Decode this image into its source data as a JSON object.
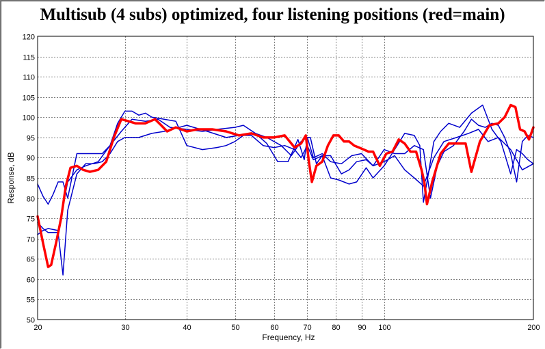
{
  "chart_data": {
    "type": "line",
    "title": "Multisub (4 subs) optimized, four listening positions (red=main)",
    "xlabel": "Frequency, Hz",
    "ylabel": "Response, dB",
    "xscale": "log",
    "xlim": [
      20,
      200
    ],
    "ylim": [
      50,
      120
    ],
    "grid": true,
    "x_ticks": [
      20,
      30,
      40,
      50,
      60,
      70,
      80,
      90,
      100,
      200
    ],
    "y_ticks": [
      50,
      55,
      60,
      65,
      70,
      75,
      80,
      85,
      90,
      95,
      100,
      105,
      110,
      115,
      120
    ],
    "colors": {
      "main": "#ff0000",
      "other": "#0000cc",
      "grid": "#808080"
    },
    "series": [
      {
        "role": "main",
        "x": [
          20,
          20.5,
          21,
          21.3,
          21.8,
          22.3,
          22.8,
          23.3,
          24,
          24.7,
          25.5,
          26.5,
          27.5,
          28.5,
          29.5,
          30.5,
          31.5,
          33,
          34.5,
          35.5,
          36.5,
          38,
          40,
          42,
          45,
          48,
          51,
          54,
          57,
          60,
          63,
          66,
          68,
          69.5,
          70.5,
          71.5,
          73,
          75,
          77,
          79,
          81,
          83,
          85,
          87,
          89,
          91,
          93,
          95,
          98,
          101,
          104,
          107,
          110,
          113,
          116,
          119,
          120.5,
          122,
          125,
          130,
          135,
          140,
          144,
          146,
          150,
          156,
          163,
          170,
          175,
          180,
          184,
          188,
          192,
          196,
          200
        ],
        "y": [
          75.5,
          69,
          63,
          63.5,
          69,
          75,
          83,
          87.5,
          88,
          87,
          86.5,
          87,
          89,
          95,
          99.5,
          99,
          98.5,
          98.5,
          99.5,
          98,
          96.5,
          97.5,
          96.5,
          97,
          97,
          96.5,
          95.5,
          96,
          95,
          95,
          95.5,
          92.5,
          93.5,
          95.5,
          89,
          84,
          88,
          89,
          93,
          95.5,
          95.5,
          94,
          94,
          93,
          92.5,
          92,
          91.5,
          91.5,
          88,
          91,
          91.5,
          94.5,
          93.5,
          91.5,
          91.5,
          87,
          84,
          78.5,
          84,
          91,
          93.5,
          93.5,
          93.5,
          93.5,
          86.5,
          94,
          98,
          98.5,
          100,
          103,
          102.5,
          97,
          96.5,
          94.5,
          97.5
        ]
      },
      {
        "role": "other",
        "x": [
          20,
          20.5,
          21,
          22,
          23,
          24,
          25,
          26.5,
          28,
          29.5,
          31,
          33,
          35,
          37,
          40,
          43,
          46,
          50,
          52,
          55,
          58,
          62,
          65,
          68,
          70,
          72,
          75,
          78,
          82,
          86,
          90,
          95,
          100,
          105,
          110,
          115,
          120,
          126,
          132,
          140,
          148,
          155,
          162,
          170,
          180,
          190,
          200
        ],
        "y": [
          71,
          72,
          72.5,
          72,
          84,
          87,
          88,
          89,
          93,
          96.5,
          99.5,
          99,
          99.5,
          97.5,
          97,
          96.5,
          97,
          97.5,
          98,
          96,
          95,
          93,
          90.5,
          94,
          95,
          90,
          91,
          89,
          88.5,
          90.5,
          91,
          88,
          89,
          90.5,
          87,
          85,
          83,
          90,
          94,
          95,
          96,
          97,
          94,
          95,
          92,
          87,
          88.5
        ]
      },
      {
        "role": "other",
        "x": [
          20,
          20.5,
          21,
          21.5,
          22,
          22.5,
          23,
          24,
          25,
          26,
          27,
          28,
          29,
          30,
          32,
          34,
          36,
          40,
          44,
          48,
          51,
          54,
          57,
          60,
          63,
          66,
          68,
          70,
          72,
          75,
          78,
          82,
          85,
          88,
          92,
          95,
          100,
          105,
          110,
          115,
          120,
          124,
          128,
          132,
          138,
          145,
          150,
          155,
          160,
          165,
          170,
          175,
          180,
          185,
          190,
          195,
          200
        ],
        "y": [
          74,
          72.5,
          71.5,
          71.5,
          71.5,
          61,
          77,
          86,
          88.5,
          88.5,
          89,
          91,
          94,
          95,
          95,
          96,
          96.5,
          98,
          96.5,
          95,
          95.5,
          95.5,
          93,
          92.5,
          93,
          92,
          90,
          93,
          89.5,
          90.5,
          90.5,
          86,
          87,
          89,
          89.5,
          88,
          92,
          91,
          91,
          93,
          92,
          80,
          88,
          91.5,
          93,
          96.5,
          99.5,
          98,
          97.5,
          98.5,
          98,
          95,
          91,
          84,
          94,
          95.5,
          95
        ]
      },
      {
        "role": "other",
        "x": [
          20,
          20.5,
          21,
          21.5,
          22,
          22.5,
          23,
          24,
          25,
          26,
          27,
          28,
          29,
          30,
          31,
          32,
          33,
          34,
          36,
          38,
          40,
          43,
          46,
          48,
          50,
          52,
          55,
          58,
          61,
          64,
          67,
          69,
          70,
          71,
          73,
          75,
          78,
          81,
          85,
          88,
          92,
          95,
          100,
          105,
          110,
          115,
          118,
          120,
          122,
          126,
          130,
          135,
          142,
          150,
          158,
          165,
          172,
          180,
          185,
          190,
          195,
          200
        ],
        "y": [
          83.5,
          80.5,
          78.5,
          81,
          84,
          84,
          80,
          91,
          91,
          91,
          91,
          93,
          98.5,
          101.5,
          101.5,
          100.5,
          101,
          100,
          99.5,
          99,
          93,
          92,
          92.5,
          93,
          94,
          95.5,
          96,
          93.5,
          89,
          89,
          94.5,
          89.5,
          95,
          95,
          88.5,
          90.5,
          85,
          84.5,
          83.5,
          84,
          87.5,
          85,
          88,
          92,
          96,
          95.5,
          93,
          79,
          84,
          94,
          96.5,
          98.5,
          97.5,
          101,
          103,
          97,
          94,
          86,
          92,
          91,
          89.5,
          88.5
        ]
      }
    ]
  }
}
